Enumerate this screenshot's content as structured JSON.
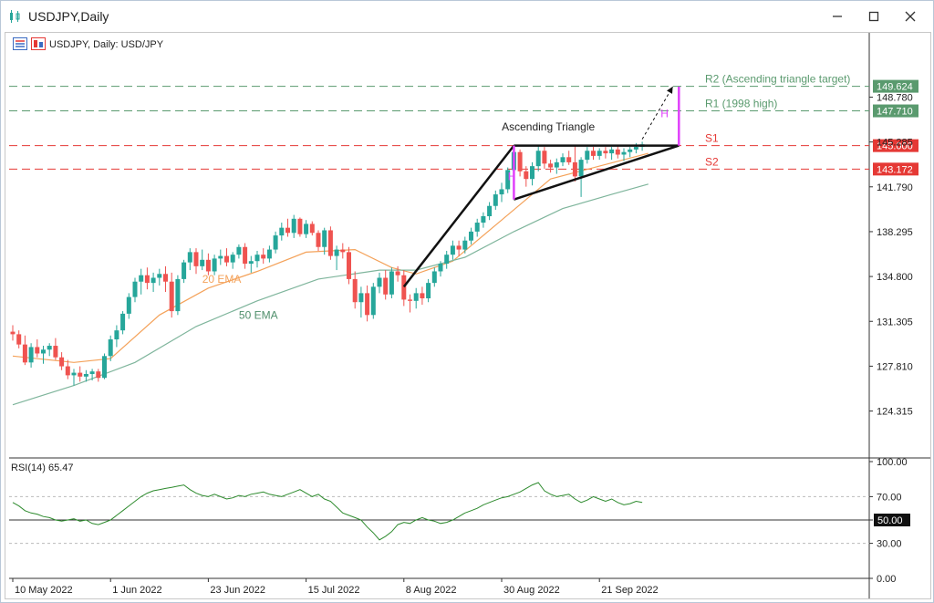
{
  "window": {
    "title": "USDJPY,Daily"
  },
  "chart_header": {
    "label": "USDJPY, Daily:  USD/JPY"
  },
  "colors": {
    "bull": "#26a69a",
    "bear": "#ef5350",
    "ema20": "#f4a25a",
    "ema50": "#7fb59c",
    "support": "#e53935",
    "resistance": "#5a9a6e",
    "magenta": "#e040fb"
  },
  "chart_data": [
    {
      "type": "candlestick",
      "title": "",
      "y_ticks": [
        124.315,
        127.81,
        131.305,
        134.8,
        138.295,
        141.79,
        145.285,
        148.78
      ],
      "ylim": [
        120.8,
        151.8
      ],
      "x_tick_labels": [
        "10 May 2022",
        "1 Jun 2022",
        "23 Jun 2022",
        "15 Jul 2022",
        "8 Aug 2022",
        "30 Aug 2022",
        "21 Sep 2022"
      ],
      "x_tick_positions": [
        0,
        16,
        32,
        48,
        64,
        80,
        96
      ],
      "bars": 104,
      "ohlc": [
        [
          130.5,
          131.0,
          129.8,
          130.3
        ],
        [
          130.3,
          130.6,
          129.2,
          129.5
        ],
        [
          129.5,
          130.2,
          127.9,
          128.1
        ],
        [
          128.1,
          129.6,
          127.7,
          129.3
        ],
        [
          129.3,
          129.9,
          128.5,
          128.8
        ],
        [
          128.8,
          129.4,
          128.0,
          129.1
        ],
        [
          129.1,
          129.6,
          128.6,
          129.4
        ],
        [
          129.4,
          130.0,
          128.3,
          128.5
        ],
        [
          128.5,
          128.9,
          127.5,
          127.8
        ],
        [
          127.8,
          128.3,
          126.8,
          127.1
        ],
        [
          127.1,
          127.6,
          126.3,
          127.3
        ],
        [
          127.3,
          127.8,
          126.6,
          127.0
        ],
        [
          127.0,
          127.5,
          126.6,
          127.2
        ],
        [
          127.2,
          127.6,
          126.7,
          127.4
        ],
        [
          127.4,
          127.6,
          126.6,
          126.9
        ],
        [
          126.9,
          128.8,
          126.8,
          128.6
        ],
        [
          128.6,
          130.2,
          128.2,
          129.9
        ],
        [
          129.9,
          131.0,
          129.3,
          130.6
        ],
        [
          130.6,
          132.1,
          130.3,
          131.9
        ],
        [
          131.9,
          133.5,
          131.5,
          133.2
        ],
        [
          133.2,
          134.7,
          132.8,
          134.4
        ],
        [
          134.4,
          135.4,
          133.4,
          134.9
        ],
        [
          134.9,
          135.5,
          133.8,
          134.3
        ],
        [
          134.3,
          135.1,
          133.6,
          134.7
        ],
        [
          134.7,
          135.4,
          134.1,
          135.0
        ],
        [
          135.0,
          135.6,
          133.6,
          134.4
        ],
        [
          134.4,
          135.1,
          131.6,
          132.1
        ],
        [
          132.1,
          134.9,
          131.8,
          134.6
        ],
        [
          134.6,
          136.1,
          134.3,
          135.9
        ],
        [
          135.9,
          137.0,
          135.3,
          136.7
        ],
        [
          136.7,
          137.0,
          135.0,
          135.6
        ],
        [
          135.6,
          136.9,
          135.3,
          136.1
        ],
        [
          136.1,
          136.6,
          134.9,
          135.2
        ],
        [
          135.2,
          136.5,
          134.9,
          136.2
        ],
        [
          136.2,
          136.9,
          135.7,
          136.4
        ],
        [
          136.4,
          137.0,
          135.6,
          135.9
        ],
        [
          135.9,
          136.7,
          135.4,
          136.5
        ],
        [
          136.5,
          137.3,
          136.2,
          137.1
        ],
        [
          137.1,
          137.4,
          135.4,
          135.8
        ],
        [
          135.8,
          136.4,
          135.1,
          136.0
        ],
        [
          136.0,
          136.8,
          135.5,
          136.5
        ],
        [
          136.5,
          137.0,
          135.8,
          136.2
        ],
        [
          136.2,
          137.2,
          135.9,
          136.9
        ],
        [
          136.9,
          138.3,
          136.6,
          138.0
        ],
        [
          138.0,
          139.0,
          137.6,
          138.6
        ],
        [
          138.6,
          139.3,
          137.9,
          138.2
        ],
        [
          138.2,
          139.6,
          137.8,
          139.3
        ],
        [
          139.3,
          139.4,
          137.9,
          138.1
        ],
        [
          138.1,
          139.2,
          137.8,
          138.9
        ],
        [
          138.9,
          139.1,
          138.0,
          138.2
        ],
        [
          138.2,
          138.4,
          136.8,
          137.1
        ],
        [
          137.1,
          138.6,
          136.5,
          138.4
        ],
        [
          138.4,
          138.7,
          136.1,
          136.4
        ],
        [
          136.4,
          137.2,
          135.3,
          136.9
        ],
        [
          136.9,
          137.4,
          136.2,
          136.7
        ],
        [
          136.7,
          137.1,
          134.2,
          134.6
        ],
        [
          134.6,
          135.2,
          132.3,
          132.8
        ],
        [
          132.8,
          134.0,
          131.6,
          133.5
        ],
        [
          133.5,
          134.1,
          131.3,
          131.8
        ],
        [
          131.8,
          134.3,
          131.5,
          134.0
        ],
        [
          134.0,
          135.1,
          133.5,
          134.7
        ],
        [
          134.7,
          135.3,
          133.0,
          133.4
        ],
        [
          133.4,
          135.5,
          133.1,
          135.2
        ],
        [
          135.2,
          135.6,
          134.4,
          134.9
        ],
        [
          134.9,
          135.3,
          132.5,
          133.0
        ],
        [
          133.0,
          133.4,
          132.0,
          132.9
        ],
        [
          132.9,
          133.9,
          132.3,
          133.5
        ],
        [
          133.5,
          134.0,
          132.6,
          133.1
        ],
        [
          133.1,
          134.6,
          132.8,
          134.3
        ],
        [
          134.3,
          135.5,
          134.0,
          135.2
        ],
        [
          135.2,
          136.0,
          134.8,
          135.8
        ],
        [
          135.8,
          136.8,
          135.4,
          136.5
        ],
        [
          136.5,
          137.6,
          136.1,
          137.2
        ],
        [
          137.2,
          137.6,
          136.4,
          136.9
        ],
        [
          136.9,
          137.9,
          136.6,
          137.6
        ],
        [
          137.6,
          138.6,
          137.3,
          138.3
        ],
        [
          138.3,
          139.3,
          137.9,
          139.0
        ],
        [
          139.0,
          139.8,
          138.6,
          139.5
        ],
        [
          139.5,
          140.6,
          139.2,
          140.3
        ],
        [
          140.3,
          141.5,
          140.0,
          141.2
        ],
        [
          141.2,
          142.1,
          140.6,
          141.6
        ],
        [
          141.6,
          143.3,
          141.3,
          143.1
        ],
        [
          143.1,
          145.0,
          142.6,
          144.5
        ],
        [
          144.5,
          144.7,
          142.6,
          143.0
        ],
        [
          143.0,
          143.4,
          141.8,
          142.4
        ],
        [
          142.4,
          143.7,
          141.9,
          143.4
        ],
        [
          143.4,
          145.0,
          143.0,
          144.6
        ],
        [
          144.6,
          144.9,
          143.2,
          143.6
        ],
        [
          143.6,
          143.9,
          142.9,
          143.3
        ],
        [
          143.3,
          144.0,
          142.8,
          143.7
        ],
        [
          143.7,
          144.4,
          143.4,
          144.1
        ],
        [
          144.1,
          144.6,
          143.5,
          143.7
        ],
        [
          143.7,
          145.0,
          142.2,
          142.6
        ],
        [
          142.6,
          144.1,
          141.0,
          143.9
        ],
        [
          143.9,
          144.9,
          143.6,
          144.6
        ],
        [
          144.6,
          144.9,
          143.9,
          144.2
        ],
        [
          144.2,
          144.8,
          143.9,
          144.6
        ],
        [
          144.6,
          144.9,
          144.0,
          144.4
        ],
        [
          144.4,
          144.9,
          143.9,
          144.7
        ],
        [
          144.7,
          145.0,
          144.0,
          144.3
        ],
        [
          144.3,
          144.8,
          143.8,
          144.5
        ],
        [
          144.5,
          144.9,
          144.1,
          144.7
        ],
        [
          144.7,
          145.2,
          144.4,
          144.9
        ],
        [
          144.9,
          145.3,
          144.6,
          145.1
        ]
      ],
      "ema_series": [
        {
          "name": "20 EMA",
          "points": [
            [
              0,
              128.6
            ],
            [
              10,
              128.1
            ],
            [
              16,
              128.4
            ],
            [
              24,
              131.8
            ],
            [
              32,
              133.9
            ],
            [
              40,
              135.2
            ],
            [
              48,
              136.7
            ],
            [
              56,
              136.9
            ],
            [
              62,
              135.5
            ],
            [
              66,
              135.0
            ],
            [
              72,
              136.0
            ],
            [
              80,
              139.2
            ],
            [
              88,
              142.4
            ],
            [
              96,
              143.4
            ],
            [
              104,
              144.4
            ]
          ]
        },
        {
          "name": "50 EMA",
          "points": [
            [
              0,
              124.8
            ],
            [
              10,
              126.3
            ],
            [
              20,
              128.1
            ],
            [
              30,
              130.9
            ],
            [
              40,
              132.9
            ],
            [
              50,
              134.6
            ],
            [
              60,
              135.3
            ],
            [
              66,
              135.3
            ],
            [
              74,
              136.3
            ],
            [
              82,
              138.3
            ],
            [
              90,
              140.1
            ],
            [
              98,
              141.2
            ],
            [
              104,
              142.0
            ]
          ]
        }
      ],
      "levels": [
        {
          "name": "R2 (Ascending triangle target)",
          "value": 149.624,
          "value_label": "149.624",
          "kind": "resistance"
        },
        {
          "name": "R1 (1998 high)",
          "value": 147.71,
          "value_label": "147.710",
          "kind": "resistance"
        },
        {
          "name": "S1",
          "value": 145.0,
          "value_label": "145.000",
          "kind": "support"
        },
        {
          "name": "S2",
          "value": 143.172,
          "value_label": "143.172",
          "kind": "support"
        }
      ],
      "annotations": [
        {
          "text": "Ascending Triangle",
          "x": 83,
          "y": 146.2
        },
        {
          "text": "20 EMA",
          "x": 31,
          "y": 134.3
        },
        {
          "text": "50 EMA",
          "x": 37,
          "y": 131.5
        },
        {
          "text": "H",
          "x": 81,
          "y": 142.3
        },
        {
          "text": "H",
          "x": 106,
          "y": 147.2
        }
      ],
      "triangle": {
        "apex": [
          82,
          145.0
        ],
        "left_bottom": [
          82,
          140.8
        ],
        "right": [
          109,
          145.0
        ],
        "impulse_start": [
          64,
          134.0
        ]
      },
      "target_arrow": {
        "from": [
          103,
          145.5
        ],
        "to": [
          108,
          149.6
        ]
      },
      "measure_lines": [
        {
          "x": 82,
          "from": 140.8,
          "to": 145.0
        },
        {
          "x": 109,
          "from": 145.0,
          "to": 149.6
        }
      ]
    },
    {
      "type": "line",
      "title": "RSI(14) 65.47",
      "series": [
        {
          "name": "RSI(14)",
          "values": [
            65,
            62,
            58,
            56,
            55,
            53,
            52,
            50,
            49,
            50,
            51,
            49,
            50,
            47,
            46,
            48,
            50,
            54,
            58,
            62,
            66,
            70,
            73,
            75,
            76,
            77,
            78,
            79,
            80,
            76,
            73,
            71,
            70,
            72,
            70,
            68,
            69,
            71,
            70,
            72,
            73,
            74,
            72,
            71,
            70,
            72,
            74,
            76,
            73,
            70,
            72,
            68,
            66,
            61,
            56,
            54,
            52,
            50,
            44,
            39,
            33,
            36,
            40,
            46,
            48,
            47,
            50,
            52,
            50,
            49,
            47,
            48,
            50,
            53,
            56,
            58,
            60,
            63,
            65,
            67,
            69,
            70,
            72,
            74,
            77,
            80,
            82,
            75,
            72,
            70,
            71,
            72,
            68,
            65,
            67,
            70,
            68,
            66,
            68,
            65,
            63,
            64,
            66,
            65
          ]
        }
      ],
      "y_ticks": [
        0,
        30,
        50,
        70,
        100
      ],
      "y_tick_labels": [
        "0.00",
        "30.00",
        "50.00",
        "70.00",
        "100.00"
      ],
      "level_label": "50.00",
      "ylim": [
        0,
        100
      ]
    }
  ]
}
